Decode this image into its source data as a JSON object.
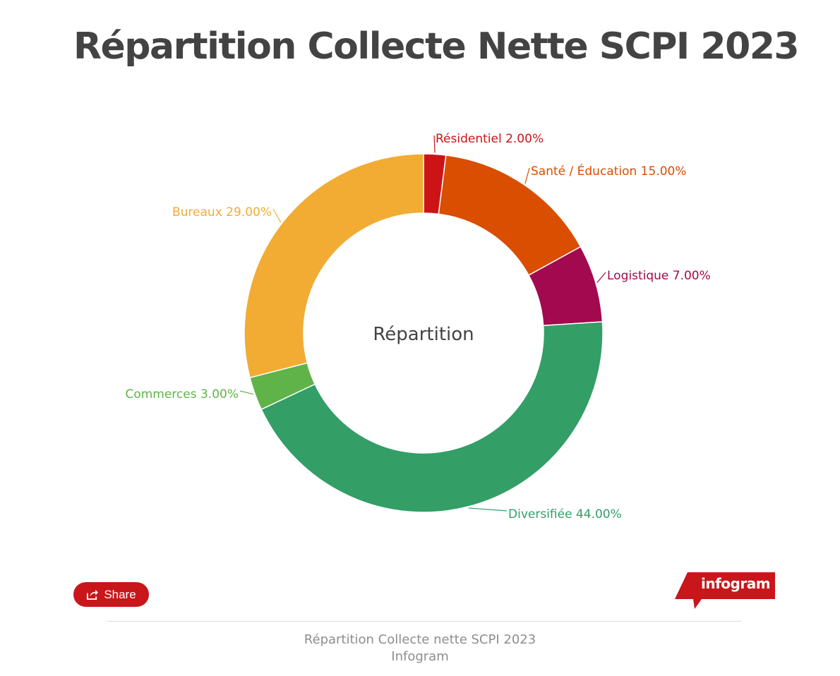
{
  "chart_data": {
    "type": "pie",
    "variant": "donut",
    "title": "Répartition Collecte Nette SCPI 2023",
    "center_label": "Répartition",
    "slices": [
      {
        "label": "Résidentiel",
        "value": 2.0,
        "display": "2.00%",
        "color": "#cc1417"
      },
      {
        "label": "Santé / Éducation",
        "value": 15.0,
        "display": "15.00%",
        "color": "#d94e00"
      },
      {
        "label": "Logistique",
        "value": 7.0,
        "display": "7.00%",
        "color": "#a2094e"
      },
      {
        "label": "Diversifiée",
        "value": 44.0,
        "display": "44.00%",
        "color": "#339e66"
      },
      {
        "label": "Commerces",
        "value": 3.0,
        "display": "3.00%",
        "color": "#5fb349"
      },
      {
        "label": "Bureaux",
        "value": 29.0,
        "display": "29.00%",
        "color": "#f2ac33"
      }
    ]
  },
  "footer": {
    "share_label": "Share",
    "logo_text": "infogram",
    "caption_line1": "Répartition Collecte nette SCPI 2023",
    "caption_line2": "Infogram"
  },
  "icons": {
    "share": "share-icon",
    "logo": "infogram-logo"
  },
  "colors": {
    "brand_red": "#c9161b",
    "title": "#434343",
    "caption": "#8e8e8e"
  }
}
